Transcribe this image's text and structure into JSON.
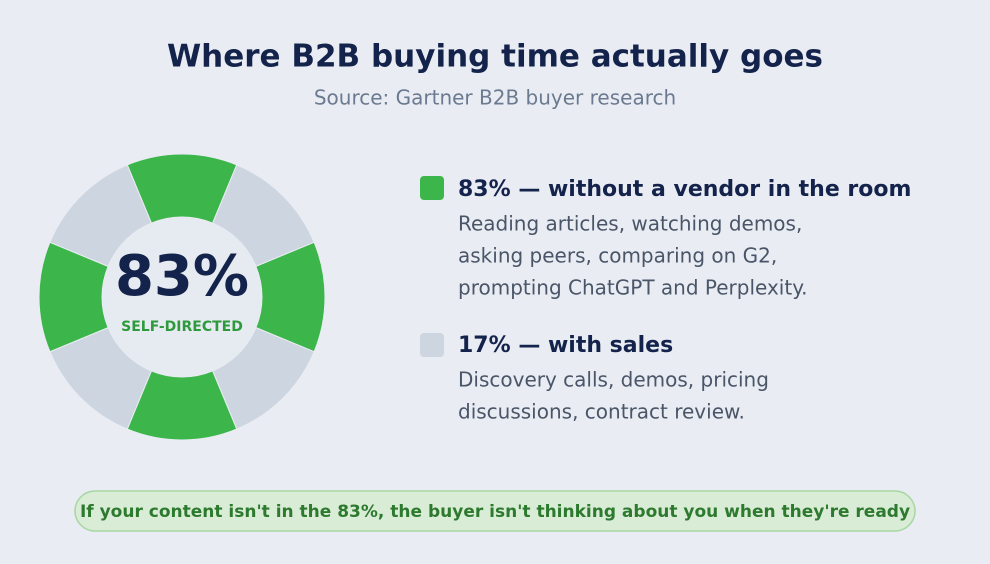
{
  "header": {
    "title": "Where B2B buying time actually goes",
    "subtitle": "Source: Gartner B2B buyer research"
  },
  "ring": {
    "center_value": "83%",
    "center_label": "SELF-DIRECTED"
  },
  "legend": [
    {
      "heading": "83% — without a vendor in the room",
      "description": [
        "Reading articles, watching demos,",
        "asking peers, comparing on G2,",
        "prompting ChatGPT and Perplexity."
      ]
    },
    {
      "heading": "17% — with sales",
      "description": [
        "Discovery calls, demos, pricing",
        "discussions, contract review."
      ]
    }
  ],
  "footer": {
    "text": "If your content isn't in the 83%, the buyer isn't thinking about you when they're ready"
  }
}
